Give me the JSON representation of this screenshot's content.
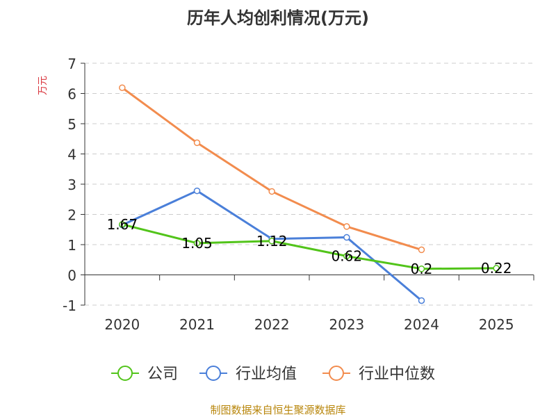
{
  "chart_data": {
    "type": "line",
    "title": "历年人均创利情况(万元)",
    "ylabel": "万元",
    "categories": [
      "2020",
      "2021",
      "2022",
      "2023",
      "2024",
      "2025"
    ],
    "yticks": [
      "7",
      "6",
      "5",
      "4",
      "3",
      "2",
      "1",
      "0",
      "-1"
    ],
    "ylim": [
      -1,
      7
    ],
    "grid": true,
    "legend_position": "bottom",
    "series": [
      {
        "name": "公司",
        "color": "#52c41a",
        "values": [
          1.67,
          1.05,
          1.12,
          0.62,
          0.2,
          0.22
        ],
        "labels": [
          "1.67",
          "1.05",
          "1.12",
          "0.62",
          "0.2",
          "0.22"
        ]
      },
      {
        "name": "行业均值",
        "color": "#4a7fd9",
        "values": [
          1.65,
          2.78,
          1.19,
          1.24,
          -0.85,
          null
        ]
      },
      {
        "name": "行业中位数",
        "color": "#f28c4e",
        "values": [
          6.19,
          4.37,
          2.76,
          1.6,
          0.83,
          null
        ]
      }
    ]
  },
  "footer": {
    "source": "制图数据来自恒生聚源数据库"
  }
}
